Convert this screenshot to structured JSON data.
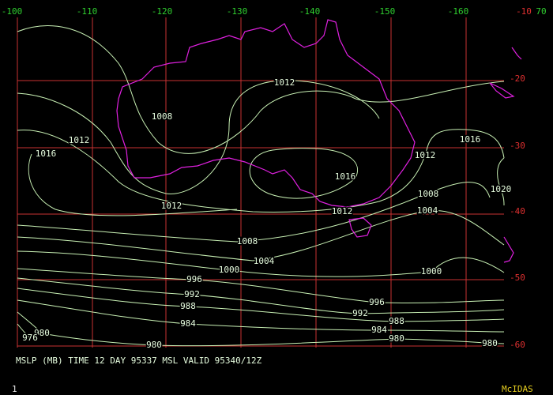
{
  "map": {
    "longitude_labels": [
      -100,
      -110,
      -120,
      -130,
      -140,
      -150,
      -160,
      70
    ],
    "latitude_labels": [
      -10,
      -20,
      -30,
      -40,
      -50,
      -60
    ],
    "contour_labels": [
      1012,
      1008,
      1012,
      1016,
      1016,
      1012,
      1016,
      1020,
      1008,
      1004,
      1012,
      1012,
      1008,
      1004,
      1000,
      1000,
      996,
      992,
      988,
      996,
      992,
      984,
      988,
      984,
      980,
      976,
      980,
      980,
      980
    ],
    "caption": "MSLP (MB) TIME 12 DAY 95337 MSL VALID 95340/12Z",
    "frame_number": 1,
    "brand": "McIDAS"
  }
}
